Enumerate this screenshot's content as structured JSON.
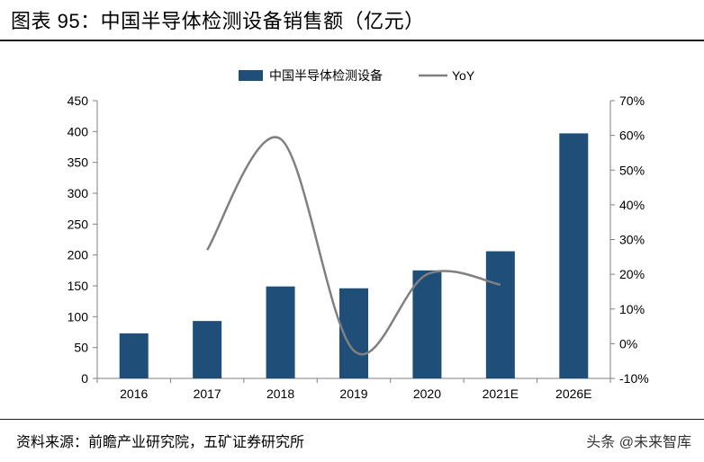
{
  "title": "图表 95：中国半导体检测设备销售额（亿元）",
  "source": "资料来源：前瞻产业研究院，五矿证券研究所",
  "watermark": "头条 @未来智库",
  "colors": {
    "bar": "#1f4e79",
    "line": "#808080",
    "axis": "#808080"
  },
  "chart_data": {
    "type": "bar",
    "categories": [
      "2016",
      "2017",
      "2018",
      "2019",
      "2020",
      "2021E",
      "2026E"
    ],
    "series": [
      {
        "name": "中国半导体检测设备",
        "type": "bar",
        "axis": "left",
        "values": [
          73,
          93,
          149,
          146,
          175,
          206,
          397
        ]
      },
      {
        "name": "YoY",
        "type": "line",
        "axis": "right",
        "values": [
          null,
          27,
          59,
          -2,
          20,
          17,
          null
        ]
      }
    ],
    "y_left": {
      "min": 0,
      "max": 450,
      "ticks": [
        "0",
        "50",
        "100",
        "150",
        "200",
        "250",
        "300",
        "350",
        "400",
        "450"
      ]
    },
    "y_right": {
      "min": -10,
      "max": 70,
      "ticks": [
        "-10%",
        "0%",
        "10%",
        "20%",
        "30%",
        "40%",
        "50%",
        "60%",
        "70%"
      ]
    },
    "legend_position": "top"
  }
}
